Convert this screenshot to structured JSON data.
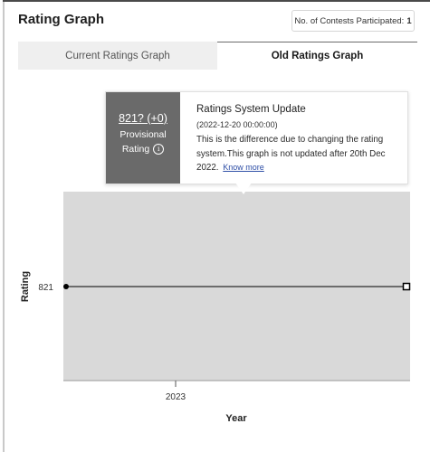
{
  "header": {
    "title": "Rating Graph",
    "contests_label": "No. of Contests Participated:",
    "contests_count": "1"
  },
  "tabs": [
    {
      "label": "Current Ratings Graph",
      "active": false
    },
    {
      "label": "Old Ratings Graph",
      "active": true
    }
  ],
  "tooltip": {
    "rating": "821? (+0)",
    "provisional": "Provisional",
    "rating_label": "Rating",
    "info_icon": "info-icon",
    "title": "Ratings System Update",
    "date": "(2022-12-20 00:00:00)",
    "description": "This is the difference due to changing the rating system.This graph is not updated after 20th Dec 2022.",
    "link": "Know more"
  },
  "colors": {
    "plot_background": "#d9d9d9",
    "tooltip_left": "#6a6a6a",
    "link": "#2e4ea6",
    "line": "#000000"
  },
  "chart_data": {
    "type": "line",
    "title": "",
    "xlabel": "Year",
    "ylabel": "Rating",
    "x_ticks": [
      "2023"
    ],
    "y_ticks": [
      821
    ],
    "series": [
      {
        "points": [
          {
            "x": "2023-start",
            "y": 821
          },
          {
            "x": "2023-end",
            "y": 821
          }
        ]
      }
    ],
    "grid": false,
    "legend": "none"
  }
}
